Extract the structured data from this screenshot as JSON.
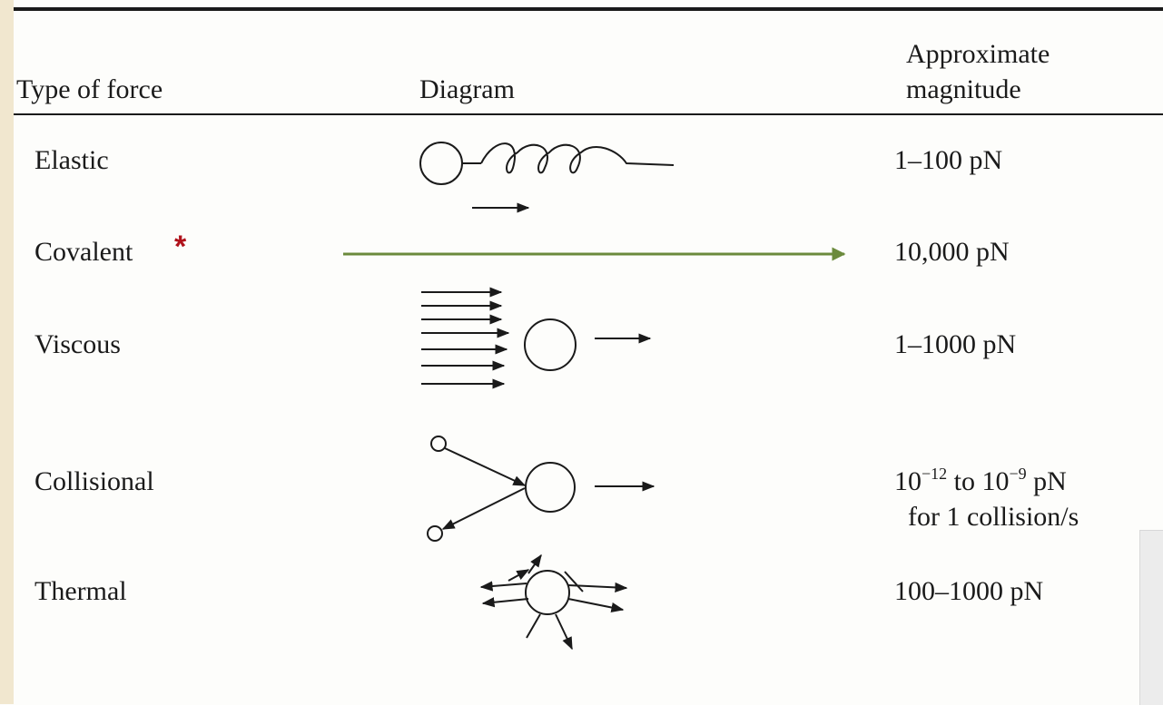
{
  "table": {
    "headers": {
      "type": "Type of force",
      "diagram": "Diagram",
      "magnitude_line1": "Approximate",
      "magnitude_line2": "magnitude"
    },
    "rows": [
      {
        "type": "Elastic",
        "magnitude": "1–100 pN"
      },
      {
        "type": "Covalent",
        "magnitude": "10,000 pN"
      },
      {
        "type": "Viscous",
        "magnitude": "1–1000 pN"
      },
      {
        "type": "Collisional",
        "magnitude": {
          "base1": "10",
          "exp1": "−12",
          "mid": " to 10",
          "exp2": "−9",
          "unit": " pN",
          "line2": "for 1 collision/s"
        }
      },
      {
        "type": "Thermal",
        "magnitude": "100–1000 pN"
      }
    ]
  },
  "annotation": {
    "marker": "*"
  }
}
